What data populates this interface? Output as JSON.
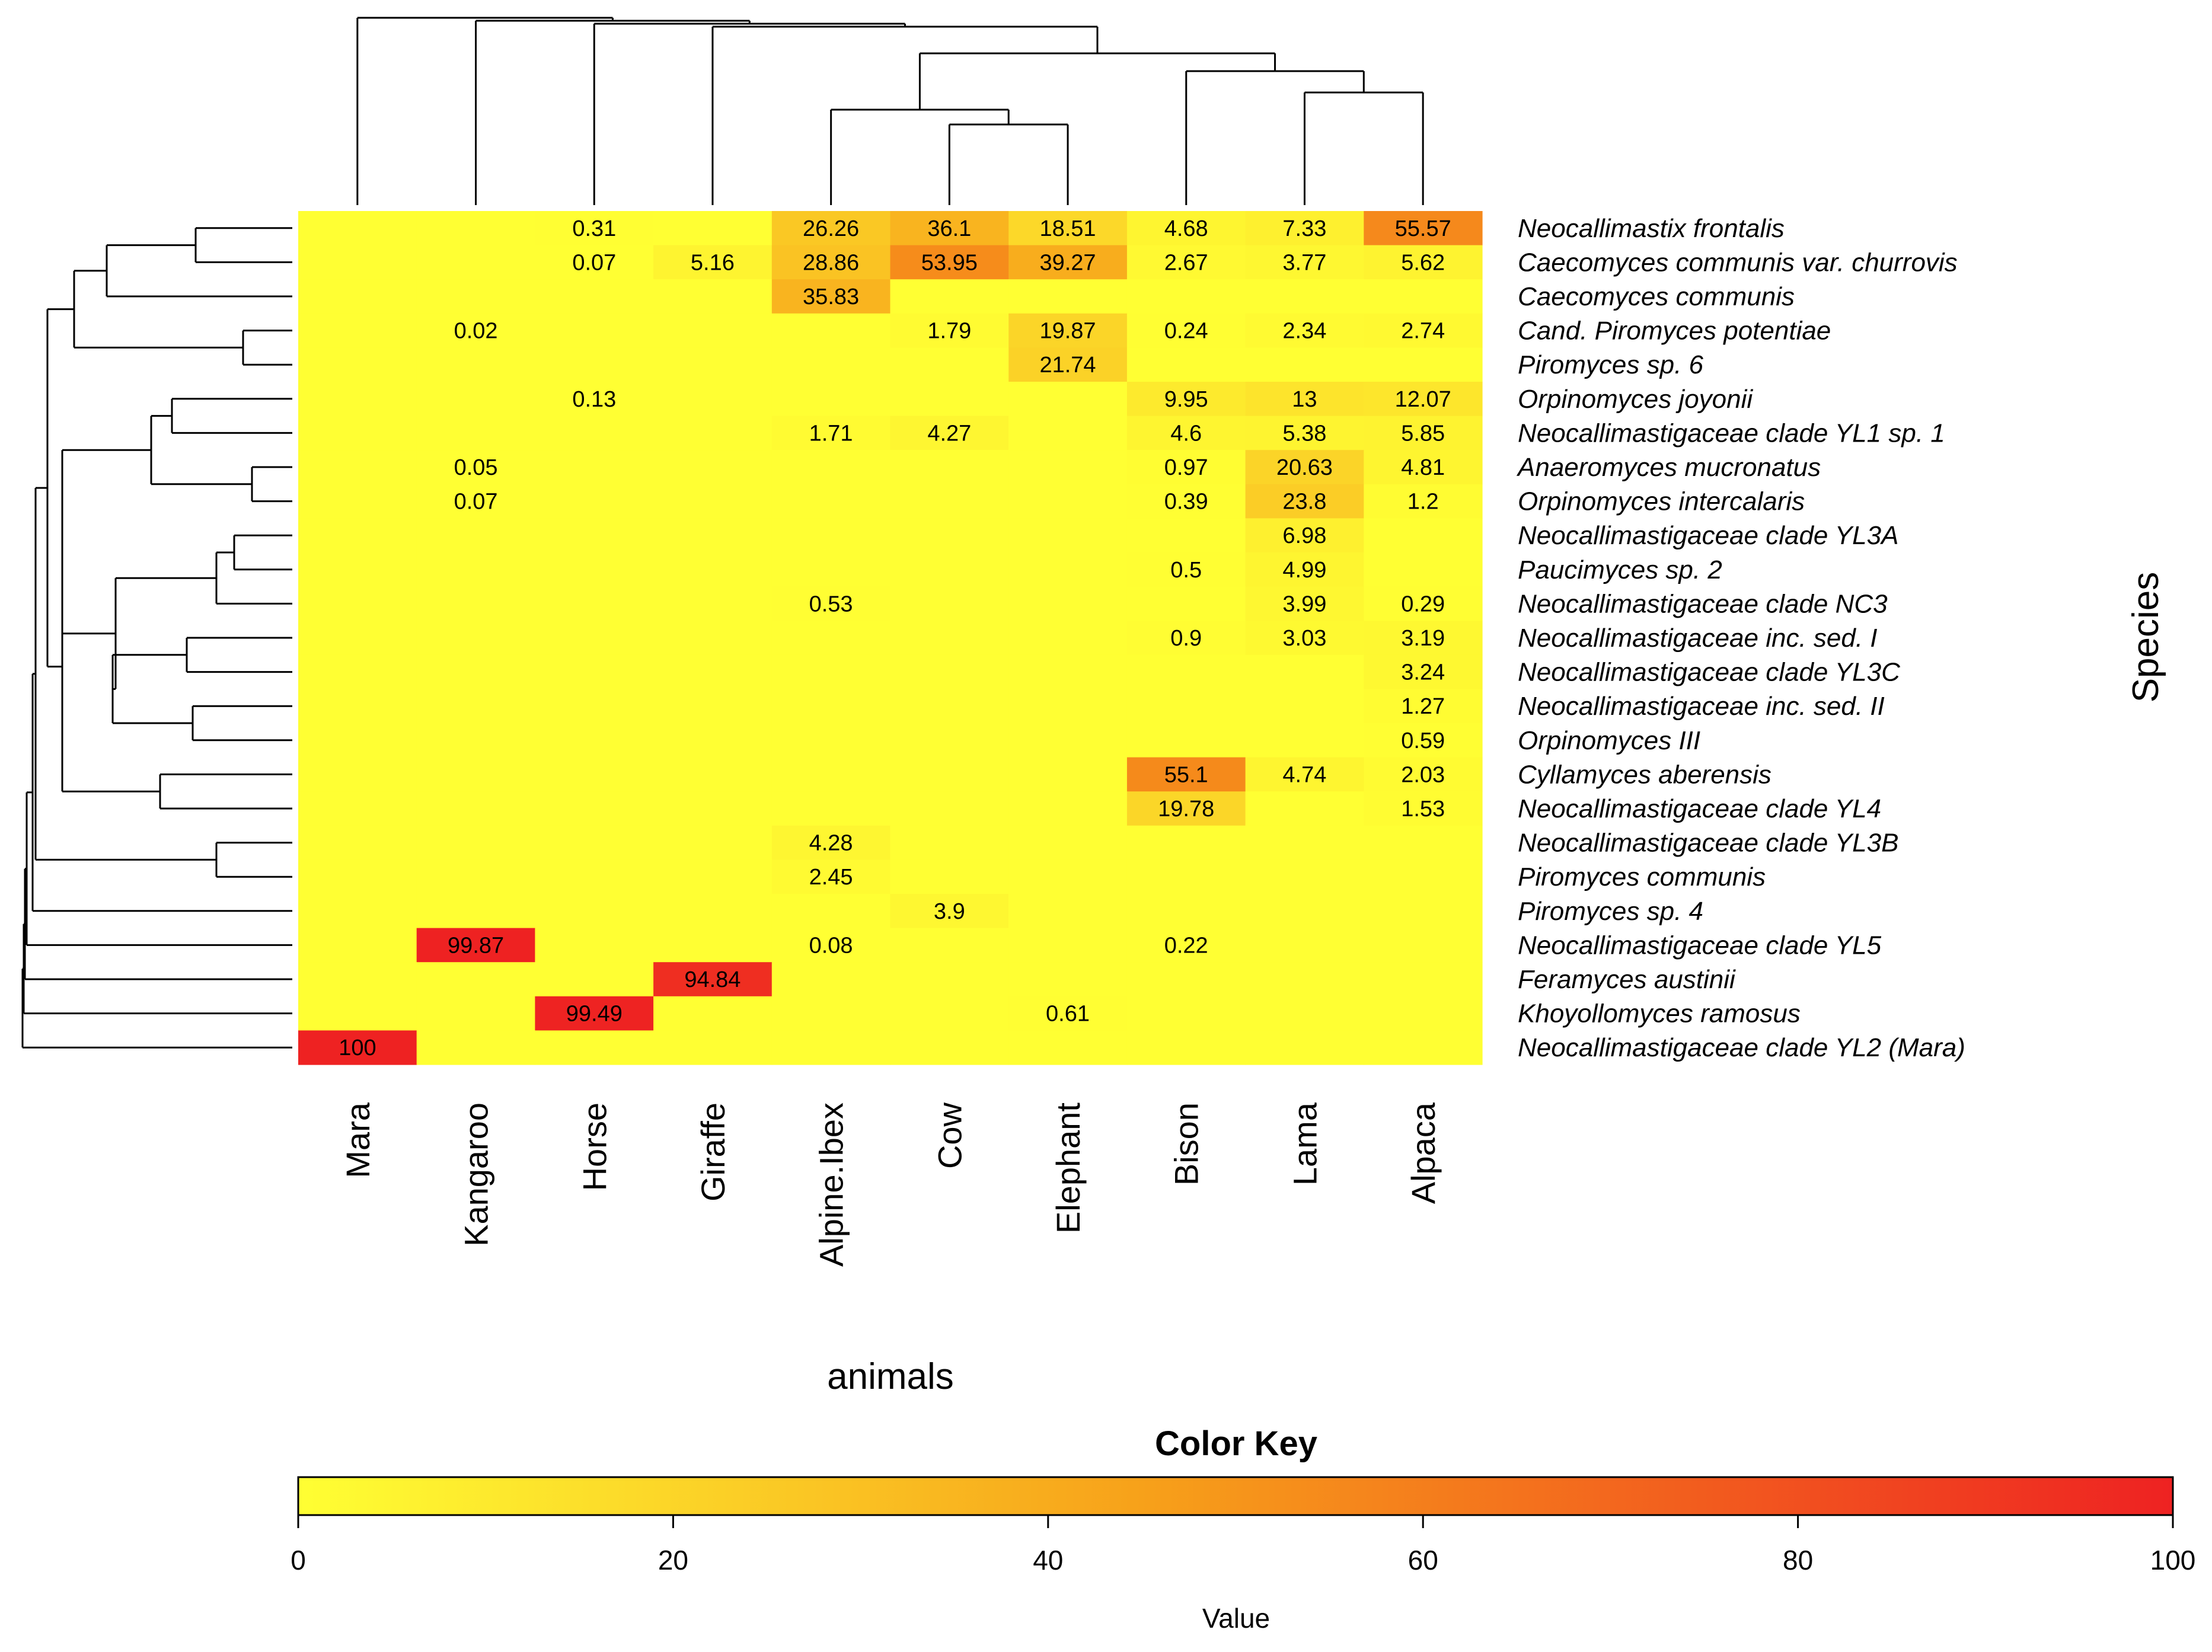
{
  "chart_data": {
    "type": "heatmap",
    "xlabel": "animals",
    "ylabel": "Species",
    "animals": [
      "Mara",
      "Kangaroo",
      "Horse",
      "Giraffe",
      "Alpine.Ibex",
      "Cow",
      "Elephant",
      "Bison",
      "Lama",
      "Alpaca"
    ],
    "species": [
      "Neocallimastix frontalis",
      "Caecomyces communis var. churrovis",
      "Caecomyces communis",
      "Cand. Piromyces potentiae",
      "Piromyces sp. 6",
      "Orpinomyces joyonii",
      "Neocallimastigaceae clade YL1 sp. 1",
      "Anaeromyces mucronatus",
      "Orpinomyces intercalaris",
      "Neocallimastigaceae clade YL3A",
      "Paucimyces sp. 2",
      "Neocallimastigaceae clade NC3",
      "Neocallimastigaceae inc. sed. I",
      "Neocallimastigaceae clade YL3C",
      "Neocallimastigaceae inc. sed. II",
      "Orpinomyces III",
      "Cyllamyces aberensis",
      "Neocallimastigaceae clade YL4",
      "Neocallimastigaceae clade YL3B",
      "Piromyces communis",
      "Piromyces sp. 4",
      "Neocallimastigaceae clade YL5",
      "Feramyces austinii",
      "Khoyollomyces ramosus",
      "Neocallimastigaceae clade YL2 (Mara)"
    ],
    "values": [
      [
        null,
        null,
        0.31,
        null,
        26.26,
        36.1,
        18.51,
        4.68,
        7.33,
        55.57
      ],
      [
        null,
        null,
        0.07,
        5.16,
        28.86,
        53.95,
        39.27,
        2.67,
        3.77,
        5.62
      ],
      [
        null,
        null,
        null,
        null,
        35.83,
        null,
        null,
        null,
        null,
        null
      ],
      [
        null,
        0.02,
        null,
        null,
        null,
        1.79,
        19.87,
        0.24,
        2.34,
        2.74
      ],
      [
        null,
        null,
        null,
        null,
        null,
        null,
        21.74,
        null,
        null,
        null
      ],
      [
        null,
        null,
        0.13,
        null,
        null,
        null,
        null,
        9.95,
        13,
        12.07
      ],
      [
        null,
        null,
        null,
        null,
        1.71,
        4.27,
        null,
        4.6,
        5.38,
        5.85
      ],
      [
        null,
        0.05,
        null,
        null,
        null,
        null,
        null,
        0.97,
        20.63,
        4.81
      ],
      [
        null,
        0.07,
        null,
        null,
        null,
        null,
        null,
        0.39,
        23.8,
        1.2
      ],
      [
        null,
        null,
        null,
        null,
        null,
        null,
        null,
        null,
        6.98,
        null
      ],
      [
        null,
        null,
        null,
        null,
        null,
        null,
        null,
        0.5,
        4.99,
        null
      ],
      [
        null,
        null,
        null,
        null,
        0.53,
        null,
        null,
        null,
        3.99,
        0.29
      ],
      [
        null,
        null,
        null,
        null,
        null,
        null,
        null,
        0.9,
        3.03,
        3.19
      ],
      [
        null,
        null,
        null,
        null,
        null,
        null,
        null,
        null,
        null,
        3.24
      ],
      [
        null,
        null,
        null,
        null,
        null,
        null,
        null,
        null,
        null,
        1.27
      ],
      [
        null,
        null,
        null,
        null,
        null,
        null,
        null,
        null,
        null,
        0.59
      ],
      [
        null,
        null,
        null,
        null,
        null,
        null,
        null,
        55.1,
        4.74,
        2.03
      ],
      [
        null,
        null,
        null,
        null,
        null,
        null,
        null,
        19.78,
        null,
        1.53
      ],
      [
        null,
        null,
        null,
        null,
        4.28,
        null,
        null,
        null,
        null,
        null
      ],
      [
        null,
        null,
        null,
        null,
        2.45,
        null,
        null,
        null,
        null,
        null
      ],
      [
        null,
        null,
        null,
        null,
        null,
        3.9,
        null,
        null,
        null,
        null
      ],
      [
        null,
        99.87,
        null,
        null,
        0.08,
        null,
        null,
        0.22,
        null,
        null
      ],
      [
        null,
        null,
        null,
        94.84,
        null,
        null,
        null,
        null,
        null,
        null
      ],
      [
        null,
        null,
        99.49,
        null,
        null,
        null,
        0.61,
        null,
        null,
        null
      ],
      [
        100,
        null,
        null,
        null,
        null,
        null,
        null,
        null,
        null,
        null
      ]
    ],
    "color_key": {
      "title": "Color Key",
      "xlabel": "Value",
      "range": [
        0,
        100
      ],
      "ticks": [
        0,
        20,
        40,
        60,
        80,
        100
      ],
      "low_color": "#ffff33",
      "mid_color": "#f7a11a",
      "high_color": "#ee2222"
    },
    "dendrogram_color": "#000000"
  }
}
